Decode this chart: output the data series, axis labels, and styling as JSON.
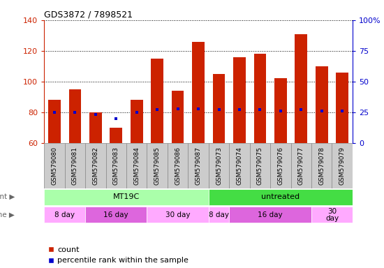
{
  "title": "GDS3872 / 7898521",
  "samples": [
    "GSM579080",
    "GSM579081",
    "GSM579082",
    "GSM579083",
    "GSM579084",
    "GSM579085",
    "GSM579086",
    "GSM579087",
    "GSM579073",
    "GSM579074",
    "GSM579075",
    "GSM579076",
    "GSM579077",
    "GSM579078",
    "GSM579079"
  ],
  "counts": [
    88,
    95,
    80,
    70,
    88,
    115,
    94,
    126,
    105,
    116,
    118,
    102,
    131,
    110,
    106
  ],
  "percentile_ranks": [
    25,
    25,
    23,
    20,
    25,
    27,
    28,
    28,
    27,
    27,
    27,
    26,
    27,
    26,
    26
  ],
  "ylim_left": [
    60,
    140
  ],
  "ylim_right": [
    0,
    100
  ],
  "yticks_left": [
    60,
    80,
    100,
    120,
    140
  ],
  "yticks_right": [
    0,
    25,
    50,
    75,
    100
  ],
  "bar_color": "#cc2200",
  "percentile_color": "#0000cc",
  "left_axis_color": "#cc2200",
  "right_axis_color": "#0000cc",
  "agent_label": "agent",
  "time_label": "time",
  "agents": [
    {
      "label": "MT19C",
      "start": 0,
      "end": 8,
      "color": "#aaffaa"
    },
    {
      "label": "untreated",
      "start": 8,
      "end": 15,
      "color": "#44dd44"
    }
  ],
  "times": [
    {
      "label": "8 day",
      "start": 0,
      "end": 2,
      "color": "#ffaaff"
    },
    {
      "label": "16 day",
      "start": 2,
      "end": 5,
      "color": "#dd66dd"
    },
    {
      "label": "30 day",
      "start": 5,
      "end": 8,
      "color": "#ffaaff"
    },
    {
      "label": "8 day",
      "start": 8,
      "end": 9,
      "color": "#ffaaff"
    },
    {
      "label": "16 day",
      "start": 9,
      "end": 13,
      "color": "#dd66dd"
    },
    {
      "label": "30\nday",
      "start": 13,
      "end": 15,
      "color": "#ffaaff"
    }
  ],
  "legend_count_label": "count",
  "legend_pct_label": "percentile rank within the sample",
  "bg_color": "#ffffff",
  "label_bg_color": "#cccccc",
  "label_border_color": "#888888"
}
